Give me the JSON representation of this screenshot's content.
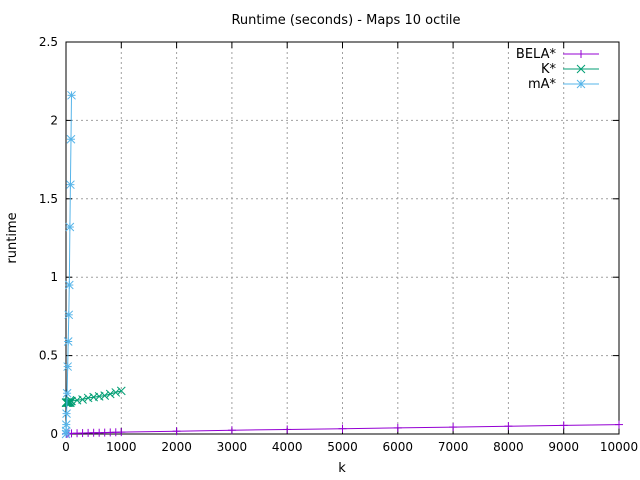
{
  "chart_data": {
    "type": "line",
    "title": "Runtime (seconds) - Maps 10 octile",
    "xlabel": "k",
    "ylabel": "runtime",
    "xlim": [
      0,
      10000
    ],
    "ylim": [
      0,
      2.5
    ],
    "x_ticks": [
      0,
      1000,
      2000,
      3000,
      4000,
      5000,
      6000,
      7000,
      8000,
      9000,
      10000
    ],
    "y_ticks": [
      0,
      0.5,
      1,
      1.5,
      2,
      2.5
    ],
    "y_tick_labels": [
      "0",
      "0.5",
      "1",
      "1.5",
      "2",
      "2.5"
    ],
    "grid": true,
    "legend_position": "top-right",
    "series": [
      {
        "name": "BELA*",
        "color": "#9400d3",
        "marker": "plus",
        "x": [
          1,
          10,
          20,
          50,
          100,
          200,
          300,
          400,
          500,
          600,
          700,
          800,
          900,
          1000,
          2000,
          3000,
          4000,
          5000,
          6000,
          7000,
          8000,
          9000,
          10000
        ],
        "y": [
          0.001,
          0.002,
          0.002,
          0.003,
          0.004,
          0.005,
          0.006,
          0.007,
          0.008,
          0.008,
          0.009,
          0.01,
          0.011,
          0.012,
          0.018,
          0.024,
          0.029,
          0.034,
          0.039,
          0.044,
          0.05,
          0.055,
          0.06
        ]
      },
      {
        "name": "K*",
        "color": "#009e73",
        "marker": "x",
        "x": [
          1,
          2,
          5,
          10,
          20,
          30,
          40,
          50,
          60,
          70,
          80,
          90,
          100,
          200,
          300,
          400,
          500,
          600,
          700,
          800,
          900,
          1000
        ],
        "y": [
          0.2,
          0.2,
          0.2,
          0.2,
          0.2,
          0.2,
          0.2,
          0.2,
          0.21,
          0.2,
          0.2,
          0.21,
          0.21,
          0.215,
          0.22,
          0.23,
          0.235,
          0.24,
          0.245,
          0.255,
          0.265,
          0.275
        ]
      },
      {
        "name": "mA*",
        "color": "#56b4e9",
        "marker": "star",
        "x": [
          1,
          2,
          5,
          10,
          20,
          30,
          40,
          50,
          60,
          70,
          80,
          90,
          100
        ],
        "y": [
          0.0,
          0.02,
          0.06,
          0.13,
          0.26,
          0.43,
          0.59,
          0.76,
          0.95,
          1.32,
          1.59,
          1.88,
          2.16
        ]
      }
    ]
  }
}
